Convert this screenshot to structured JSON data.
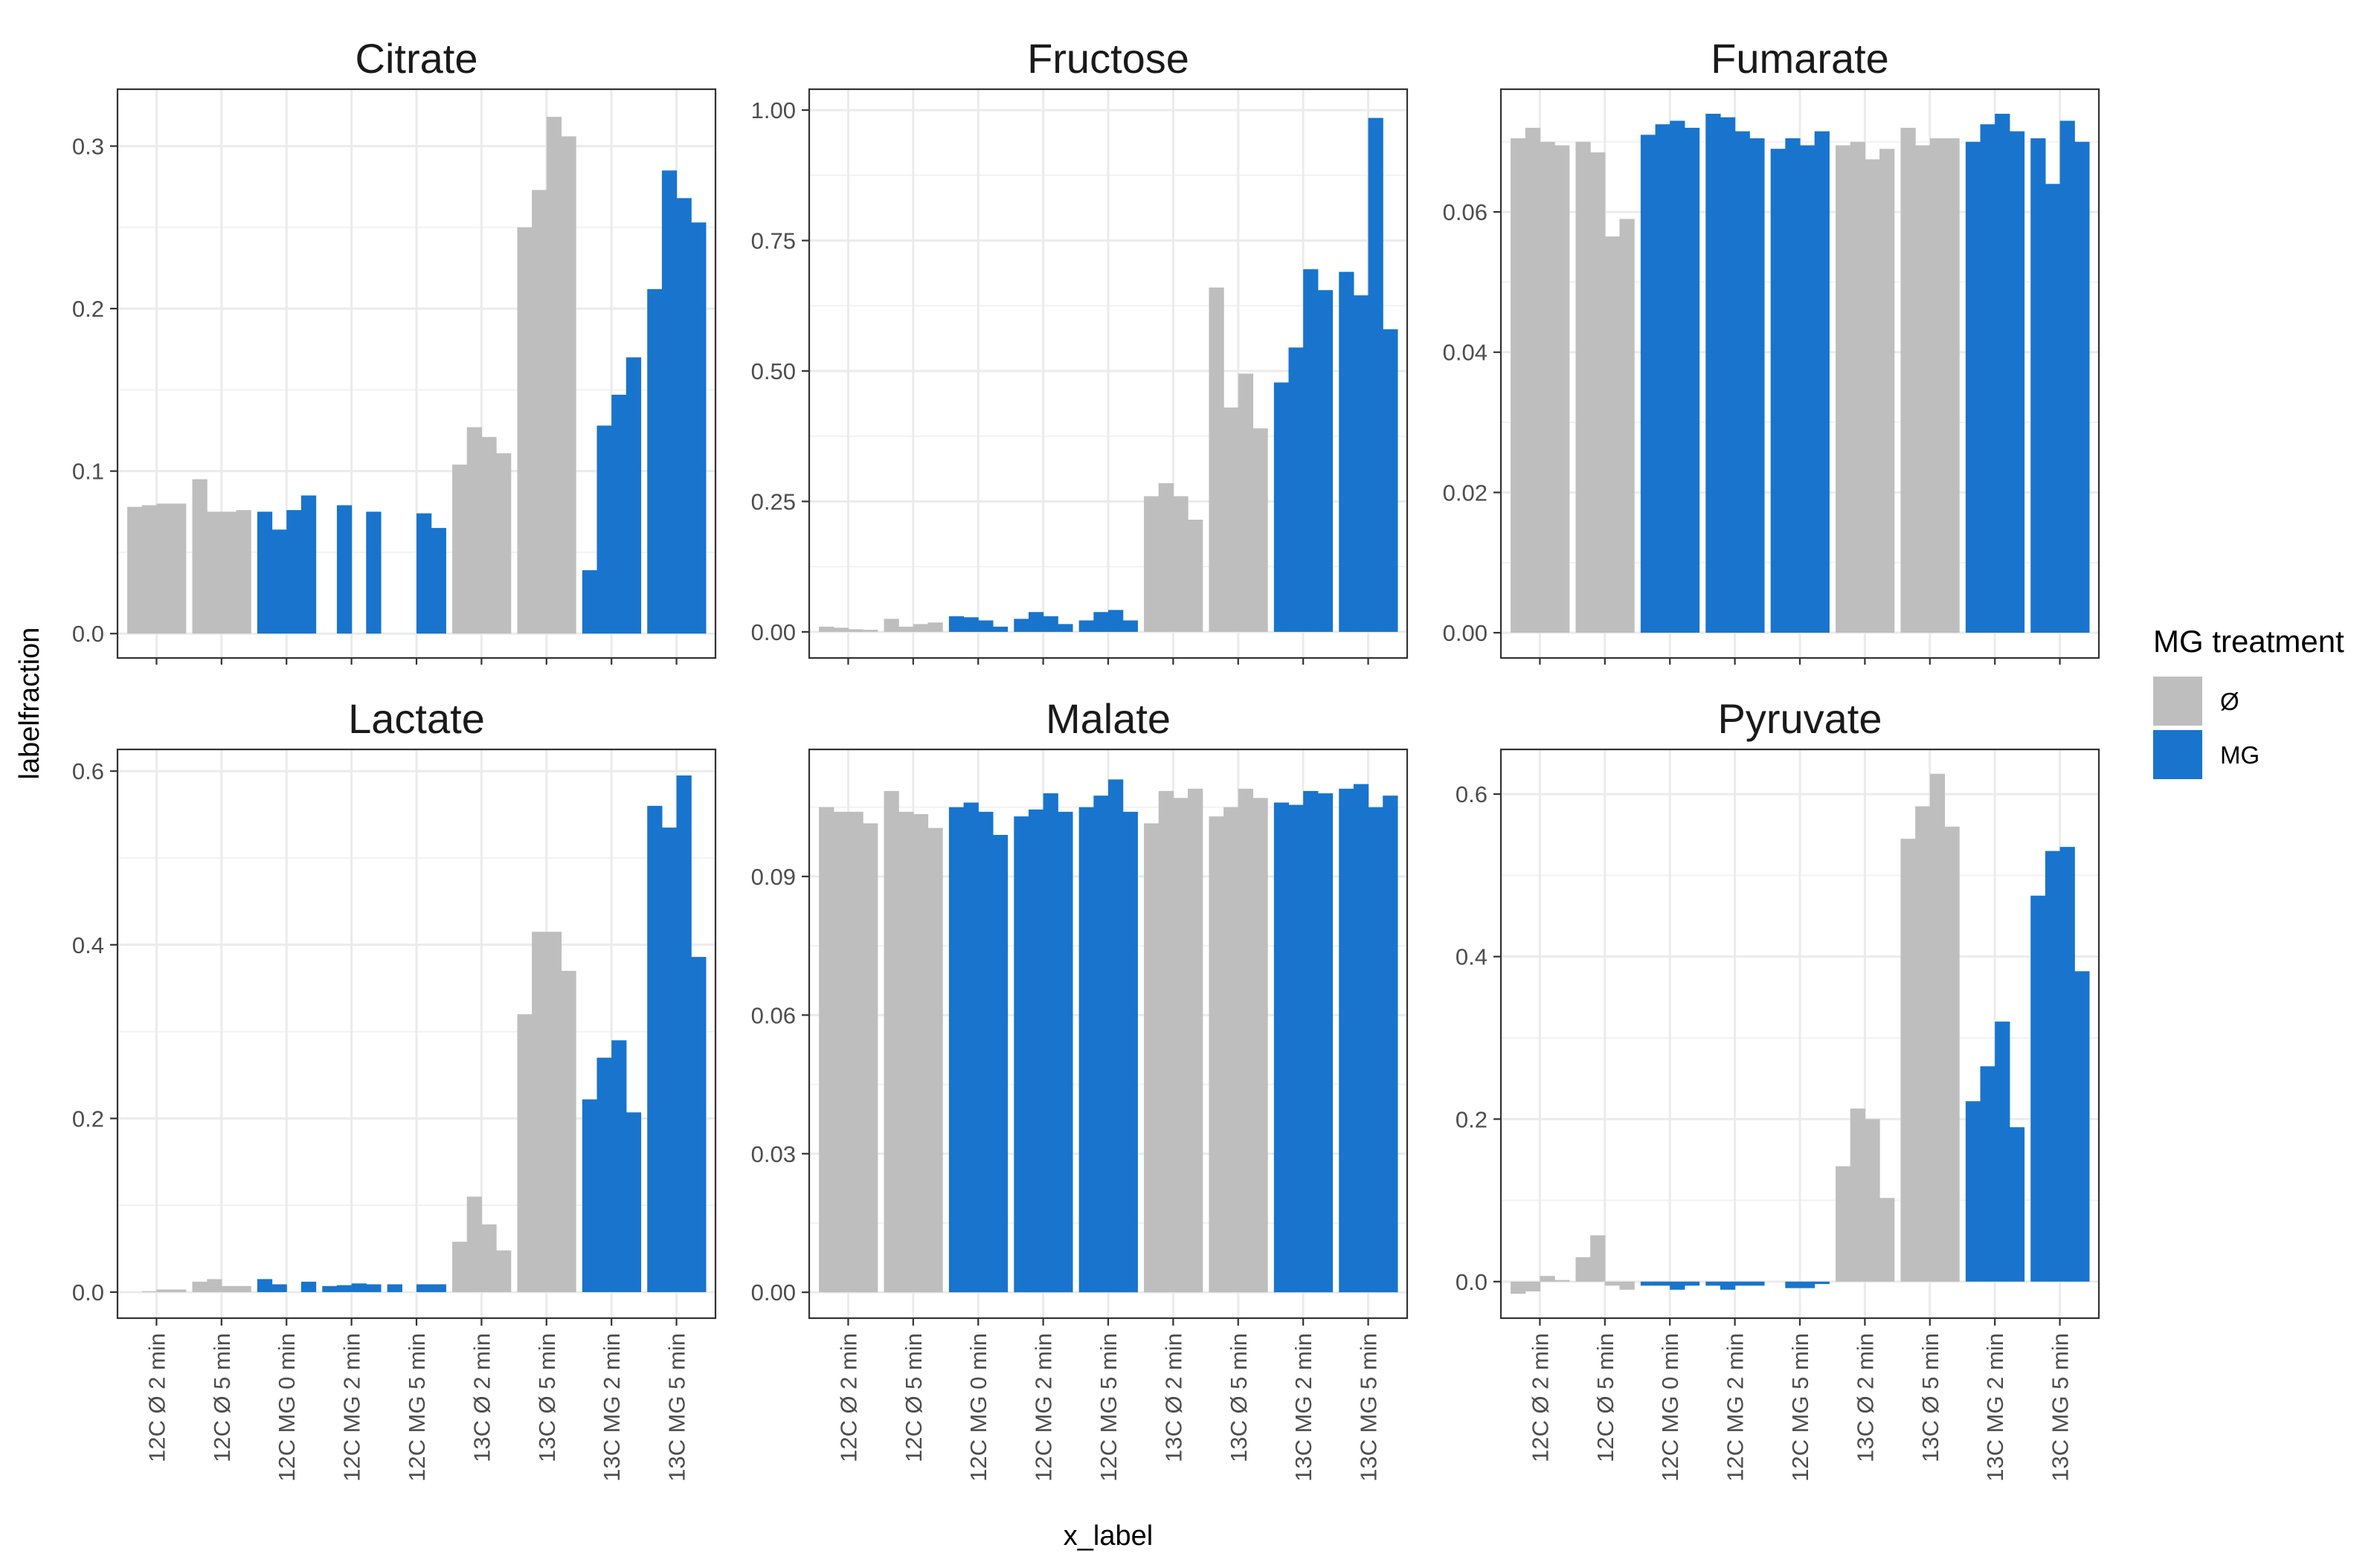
{
  "colors": {
    "none": "#BEBEBE",
    "mg": "#1874CD"
  },
  "chart_data": {
    "type": "bar",
    "xlabel": "x_label",
    "ylabel": "labelfraction",
    "categories": [
      "12C Ø 2 min",
      "12C Ø 5 min",
      "12C MG 0 min",
      "12C MG 2 min",
      "12C MG 5 min",
      "13C Ø 2 min",
      "13C Ø 5 min",
      "13C MG 2 min",
      "13C MG 5 min"
    ],
    "category_groups": [
      "Ø",
      "Ø",
      "MG",
      "MG",
      "MG",
      "Ø",
      "Ø",
      "MG",
      "MG"
    ],
    "legend": {
      "title": "MG treatment",
      "entries": [
        "Ø",
        "MG"
      ],
      "position": "right"
    },
    "grid": true,
    "panels": [
      {
        "title": "Citrate",
        "ylim": [
          -0.015,
          0.335
        ],
        "yticks": [
          0,
          0.1,
          0.2,
          0.3
        ],
        "ytick_labels": [
          "0.0",
          "0.1",
          "0.2",
          "0.3"
        ],
        "values": [
          [
            0.078,
            0.079,
            0.08,
            0.08
          ],
          [
            0.095,
            0.075,
            0.075,
            0.076
          ],
          [
            0.075,
            0.064,
            0.076,
            0.085
          ],
          [
            0,
            0.079,
            0,
            0.075
          ],
          [
            0,
            0,
            0.074,
            0.065
          ],
          [
            0.104,
            0.127,
            0.121,
            0.111
          ],
          [
            0.25,
            0.273,
            0.318,
            0.306
          ],
          [
            0.039,
            0.128,
            0.147,
            0.17
          ],
          [
            0.212,
            0.285,
            0.268,
            0.253
          ]
        ]
      },
      {
        "title": "Fructose",
        "ylim": [
          -0.05,
          1.04
        ],
        "yticks": [
          0,
          0.25,
          0.5,
          0.75,
          1.0
        ],
        "ytick_labels": [
          "0.00",
          "0.25",
          "0.50",
          "0.75",
          "1.00"
        ],
        "values": [
          [
            0.01,
            0.008,
            0.005,
            0.004
          ],
          [
            0.025,
            0.01,
            0.015,
            0.018
          ],
          [
            0.03,
            0.028,
            0.022,
            0.01
          ],
          [
            0.025,
            0.038,
            0.03,
            0.015
          ],
          [
            0.022,
            0.038,
            0.042,
            0.022
          ],
          [
            0.26,
            0.285,
            0.26,
            0.215
          ],
          [
            0.66,
            0.43,
            0.495,
            0.39
          ],
          [
            0.478,
            0.545,
            0.695,
            0.655
          ],
          [
            0.69,
            0.645,
            0.985,
            0.58
          ]
        ]
      },
      {
        "title": "Fumarate",
        "ylim": [
          -0.0036,
          0.0775
        ],
        "yticks": [
          0,
          0.02,
          0.04,
          0.06
        ],
        "ytick_labels": [
          "0.00",
          "0.02",
          "0.04",
          "0.06"
        ],
        "values": [
          [
            0.0705,
            0.072,
            0.07,
            0.0695
          ],
          [
            0.07,
            0.0685,
            0.0565,
            0.059
          ],
          [
            0.071,
            0.0725,
            0.073,
            0.072
          ],
          [
            0.074,
            0.0735,
            0.0715,
            0.0705
          ],
          [
            0.069,
            0.0705,
            0.0695,
            0.0715
          ],
          [
            0.0695,
            0.07,
            0.0675,
            0.069
          ],
          [
            0.072,
            0.0695,
            0.0705,
            0.0705
          ],
          [
            0.07,
            0.0725,
            0.074,
            0.0715
          ],
          [
            0.0705,
            0.064,
            0.073,
            0.07
          ]
        ]
      },
      {
        "title": "Lactate",
        "ylim": [
          -0.03,
          0.625
        ],
        "yticks": [
          0,
          0.2,
          0.4,
          0.6
        ],
        "ytick_labels": [
          "0.0",
          "0.2",
          "0.4",
          "0.6"
        ],
        "values": [
          [
            0,
            0.001,
            0.003,
            0.003
          ],
          [
            0.012,
            0.015,
            0.007,
            0.007
          ],
          [
            0.015,
            0.009,
            0,
            0.012
          ],
          [
            0.007,
            0.008,
            0.01,
            0.009
          ],
          [
            0.009,
            0,
            0.009,
            0.009
          ],
          [
            0.058,
            0.11,
            0.078,
            0.048
          ],
          [
            0.32,
            0.415,
            0.415,
            0.37
          ],
          [
            0.222,
            0.27,
            0.29,
            0.207
          ],
          [
            0.56,
            0.535,
            0.595,
            0.386
          ]
        ]
      },
      {
        "title": "Malate",
        "ylim": [
          -0.0056,
          0.1175
        ],
        "yticks": [
          0,
          0.03,
          0.06,
          0.09
        ],
        "ytick_labels": [
          "0.00",
          "0.03",
          "0.06",
          "0.09"
        ],
        "values": [
          [
            0.105,
            0.104,
            0.104,
            0.1015
          ],
          [
            0.1085,
            0.104,
            0.1035,
            0.1005
          ],
          [
            0.105,
            0.106,
            0.104,
            0.099
          ],
          [
            0.103,
            0.1045,
            0.108,
            0.104
          ],
          [
            0.105,
            0.1075,
            0.111,
            0.104
          ],
          [
            0.1015,
            0.1085,
            0.107,
            0.109
          ],
          [
            0.103,
            0.105,
            0.109,
            0.107
          ],
          [
            0.106,
            0.1055,
            0.1085,
            0.108
          ],
          [
            0.109,
            0.11,
            0.105,
            0.1075
          ]
        ]
      },
      {
        "title": "Pyruvate",
        "ylim": [
          -0.045,
          0.655
        ],
        "yticks": [
          0,
          0.2,
          0.4,
          0.6
        ],
        "ytick_labels": [
          "0.0",
          "0.2",
          "0.4",
          "0.6"
        ],
        "values": [
          [
            -0.015,
            -0.012,
            0.007,
            0.002
          ],
          [
            0.03,
            0.057,
            -0.005,
            -0.01
          ],
          [
            -0.005,
            -0.005,
            -0.01,
            -0.005
          ],
          [
            -0.005,
            -0.01,
            -0.005,
            -0.005
          ],
          [
            0,
            -0.008,
            -0.008,
            -0.003
          ],
          [
            0.142,
            0.213,
            0.2,
            0.103
          ],
          [
            0.545,
            0.585,
            0.625,
            0.56
          ],
          [
            0.222,
            0.265,
            0.32,
            0.19
          ],
          [
            0.475,
            0.53,
            0.535,
            0.382
          ]
        ]
      }
    ]
  }
}
